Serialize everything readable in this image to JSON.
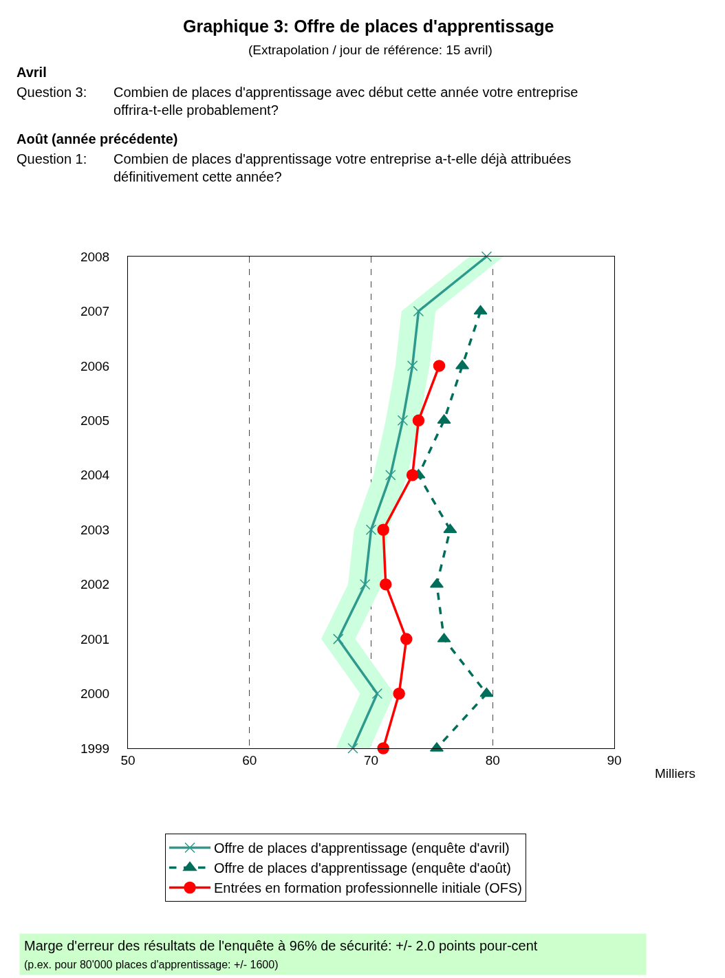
{
  "chart_data": {
    "type": "line",
    "orientation": "horizontal",
    "title": "Graphique 3: Offre de places d'apprentissage",
    "subtitle": "(Extrapolation / jour de référence: 15 avril)",
    "xlabel": "Milliers",
    "categories": [
      "2008",
      "2007",
      "2006",
      "2005",
      "2004",
      "2003",
      "2002",
      "2001",
      "2000",
      "1999"
    ],
    "series": [
      {
        "name": "Offre de places d'apprentissage (enquête d'avril)",
        "color": "#2e9a8e",
        "marker": "cross",
        "line_style": "solid",
        "values": [
          79.5,
          73.9,
          73.4,
          72.6,
          71.6,
          70.0,
          69.5,
          67.3,
          70.5,
          68.5
        ],
        "lower": [
          78.1,
          72.5,
          72.0,
          71.2,
          70.2,
          68.6,
          68.1,
          65.9,
          69.1,
          67.1
        ],
        "upper": [
          80.9,
          75.3,
          74.8,
          74.0,
          73.0,
          71.4,
          70.9,
          68.7,
          71.9,
          69.9
        ]
      },
      {
        "name": "Offre de places d'apprentissage (enquête d'août)",
        "color": "#006e5a",
        "marker": "triangle",
        "line_style": "dashed",
        "values": [
          null,
          79.0,
          77.5,
          76.0,
          73.9,
          76.5,
          75.4,
          76.0,
          79.5,
          75.4
        ]
      },
      {
        "name": "Entrées en formation professionnelle initiale (OFS)",
        "color": "#ff0000",
        "marker": "circle",
        "line_style": "solid",
        "values": [
          null,
          null,
          75.6,
          73.9,
          73.4,
          71.0,
          71.2,
          72.9,
          72.3,
          71.0
        ]
      }
    ],
    "xlim": [
      50,
      90
    ],
    "xticks": [
      50,
      60,
      70,
      80,
      90
    ],
    "grid": "x",
    "legend": "bottom",
    "annotations": [
      "Avril",
      "Question 3:",
      "Combien de places d'apprentissage avec début cette année votre entreprise\noffrira-t-elle probablement?",
      "Août (année précédente)",
      "Question 1:",
      "Combien de places d'apprentissage votre entreprise a-t-elle déjà attribuées\ndéfinitivement cette année?",
      "Marge d'erreur des résultats de l'enquête à 96% de sécurité: +/- 2.0 points pour-cent\n(p.ex. pour 80'000 places d'apprentissage: +/- 1600)"
    ]
  }
}
